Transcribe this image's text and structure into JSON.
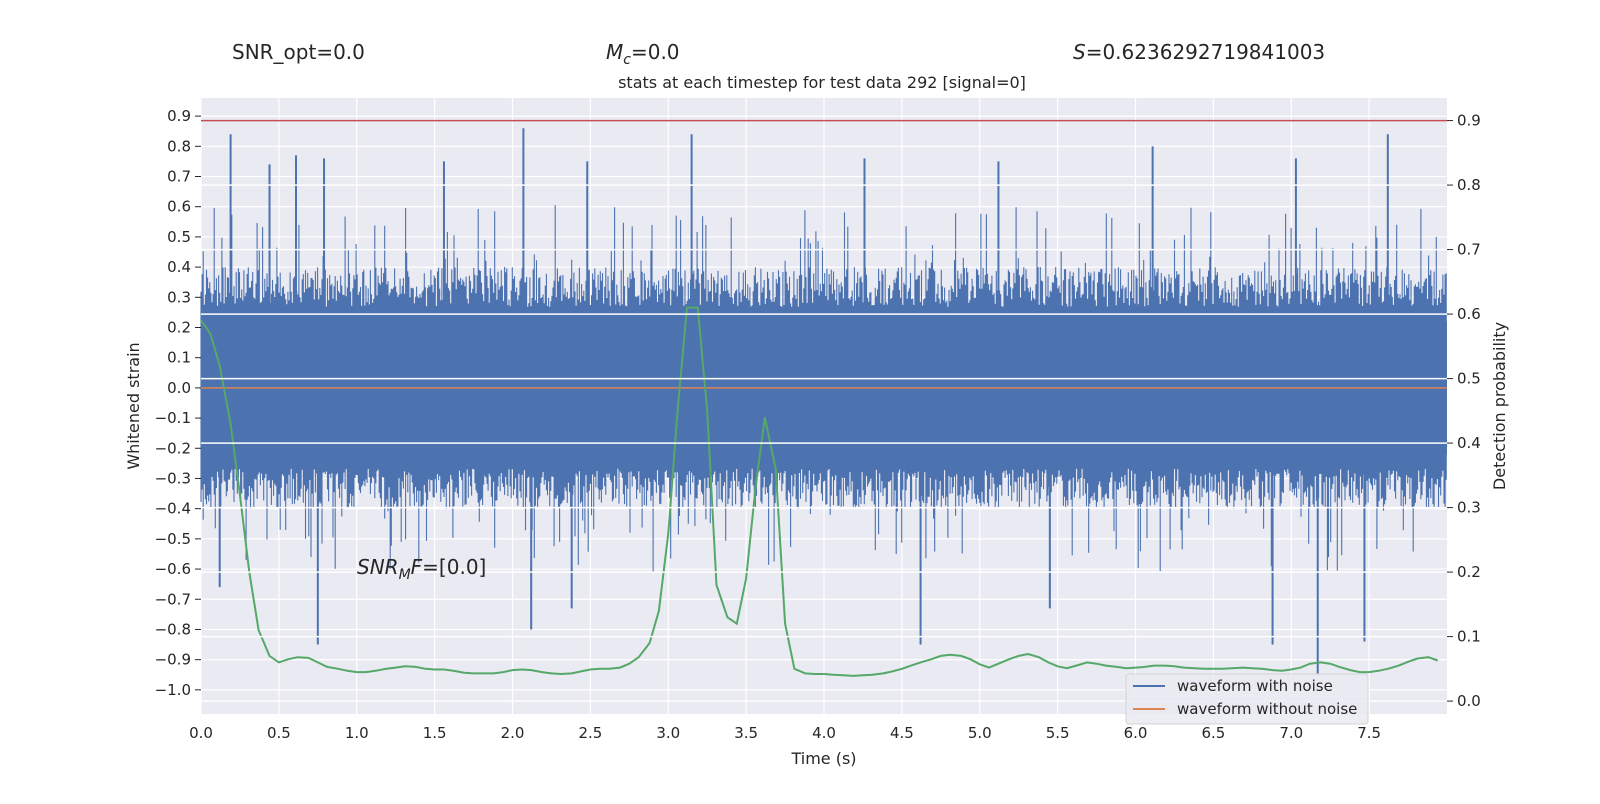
{
  "header": {
    "snr_opt": "SNR_opt=0.0",
    "mc_symbol": "M",
    "mc_sub": "c",
    "mc_value": "=0.0",
    "s_symbol": "S",
    "s_value": "=0.6236292719841003"
  },
  "chart_data": {
    "type": "line",
    "title": "stats at each timestep for test data 292 [signal=0]",
    "xlabel": "Time (s)",
    "ylabel_left": "Whitened strain",
    "ylabel_right": "Detection probability",
    "xlim": [
      0.0,
      8.0
    ],
    "ylim_left": [
      -1.08,
      0.96
    ],
    "ylim_right": [
      -0.02,
      0.935
    ],
    "x_ticks": [
      "0.0",
      "0.5",
      "1.0",
      "1.5",
      "2.0",
      "2.5",
      "3.0",
      "3.5",
      "4.0",
      "4.5",
      "5.0",
      "5.5",
      "6.0",
      "6.5",
      "7.0",
      "7.5"
    ],
    "y_ticks_left": [
      "0.9",
      "0.8",
      "0.7",
      "0.6",
      "0.5",
      "0.4",
      "0.3",
      "0.2",
      "0.1",
      "0.0",
      "-0.1",
      "-0.2",
      "-0.3",
      "-0.4",
      "-0.5",
      "-0.6",
      "-0.7",
      "-0.8",
      "-0.9",
      "-1.0"
    ],
    "y_ticks_right": [
      "0.9",
      "0.8",
      "0.7",
      "0.6",
      "0.5",
      "0.4",
      "0.3",
      "0.2",
      "0.1",
      "0.0"
    ],
    "grid": true,
    "legend_position": "lower-right",
    "annotation": {
      "main": "SNR",
      "sub": "M",
      "tail": "F",
      "value": "=[0.0]"
    },
    "threshold": 0.9,
    "series": [
      {
        "name": "waveform with noise",
        "color": "#4c72b0",
        "axis": "left",
        "envelope": {
          "typical_upper": 0.38,
          "typical_lower": -0.38,
          "dense_core": 0.22
        },
        "spikes": [
          {
            "x": 0.19,
            "y": 0.84
          },
          {
            "x": 0.44,
            "y": 0.74
          },
          {
            "x": 0.61,
            "y": 0.77
          },
          {
            "x": 0.79,
            "y": 0.76
          },
          {
            "x": 1.56,
            "y": 0.75
          },
          {
            "x": 2.07,
            "y": 0.86
          },
          {
            "x": 2.48,
            "y": 0.75
          },
          {
            "x": 3.15,
            "y": 0.84
          },
          {
            "x": 4.26,
            "y": 0.76
          },
          {
            "x": 5.12,
            "y": 0.75
          },
          {
            "x": 6.11,
            "y": 0.8
          },
          {
            "x": 7.03,
            "y": 0.76
          },
          {
            "x": 7.62,
            "y": 0.84
          },
          {
            "x": 0.12,
            "y": -0.66
          },
          {
            "x": 0.75,
            "y": -0.85
          },
          {
            "x": 2.12,
            "y": -0.8
          },
          {
            "x": 2.38,
            "y": -0.73
          },
          {
            "x": 4.62,
            "y": -0.85
          },
          {
            "x": 5.45,
            "y": -0.73
          },
          {
            "x": 6.88,
            "y": -0.85
          },
          {
            "x": 7.17,
            "y": -0.95
          },
          {
            "x": 7.47,
            "y": -0.84
          }
        ]
      },
      {
        "name": "waveform without noise",
        "color": "#dd8452",
        "axis": "left",
        "x": [
          0.0,
          8.0
        ],
        "y": [
          0.0,
          0.0
        ]
      },
      {
        "name": "",
        "color": "#55a868",
        "axis": "right",
        "x": [
          0.0,
          0.06,
          0.12,
          0.19,
          0.25,
          0.31,
          0.37,
          0.44,
          0.5,
          0.56,
          0.62,
          0.69,
          0.75,
          0.81,
          0.88,
          0.94,
          1.0,
          1.06,
          1.12,
          1.19,
          1.25,
          1.31,
          1.38,
          1.44,
          1.5,
          1.56,
          1.62,
          1.69,
          1.75,
          1.81,
          1.88,
          1.94,
          2.0,
          2.06,
          2.12,
          2.19,
          2.25,
          2.31,
          2.38,
          2.44,
          2.5,
          2.56,
          2.62,
          2.69,
          2.75,
          2.81,
          2.88,
          2.94,
          3.0,
          3.06,
          3.12,
          3.19,
          3.25,
          3.31,
          3.38,
          3.44,
          3.5,
          3.56,
          3.62,
          3.69,
          3.75,
          3.81,
          3.88,
          3.94,
          4.0,
          4.06,
          4.12,
          4.19,
          4.25,
          4.31,
          4.38,
          4.44,
          4.5,
          4.56,
          4.62,
          4.69,
          4.75,
          4.81,
          4.88,
          4.94,
          5.0,
          5.06,
          5.12,
          5.19,
          5.25,
          5.31,
          5.38,
          5.44,
          5.5,
          5.56,
          5.62,
          5.69,
          5.75,
          5.81,
          5.88,
          5.94,
          6.0,
          6.06,
          6.12,
          6.19,
          6.25,
          6.31,
          6.38,
          6.44,
          6.5,
          6.56,
          6.62,
          6.69,
          6.75,
          6.81,
          6.88,
          6.94,
          7.0,
          7.06,
          7.12,
          7.19,
          7.25,
          7.31,
          7.38,
          7.44,
          7.5,
          7.56,
          7.62,
          7.69,
          7.75,
          7.81,
          7.88,
          7.94
        ],
        "y": [
          0.59,
          0.57,
          0.52,
          0.43,
          0.32,
          0.2,
          0.11,
          0.07,
          0.06,
          0.065,
          0.068,
          0.067,
          0.06,
          0.053,
          0.05,
          0.047,
          0.045,
          0.045,
          0.047,
          0.05,
          0.052,
          0.054,
          0.053,
          0.05,
          0.049,
          0.049,
          0.047,
          0.044,
          0.043,
          0.043,
          0.043,
          0.045,
          0.048,
          0.049,
          0.048,
          0.045,
          0.043,
          0.042,
          0.043,
          0.046,
          0.049,
          0.05,
          0.05,
          0.052,
          0.058,
          0.068,
          0.09,
          0.14,
          0.26,
          0.45,
          0.61,
          0.61,
          0.45,
          0.18,
          0.13,
          0.12,
          0.19,
          0.33,
          0.44,
          0.36,
          0.12,
          0.05,
          0.043,
          0.042,
          0.042,
          0.041,
          0.04,
          0.039,
          0.04,
          0.041,
          0.043,
          0.046,
          0.05,
          0.055,
          0.06,
          0.065,
          0.07,
          0.072,
          0.07,
          0.065,
          0.057,
          0.052,
          0.058,
          0.065,
          0.07,
          0.073,
          0.068,
          0.06,
          0.054,
          0.051,
          0.055,
          0.06,
          0.058,
          0.055,
          0.053,
          0.051,
          0.052,
          0.053,
          0.055,
          0.055,
          0.054,
          0.052,
          0.051,
          0.05,
          0.05,
          0.05,
          0.051,
          0.052,
          0.051,
          0.05,
          0.048,
          0.047,
          0.049,
          0.052,
          0.058,
          0.06,
          0.058,
          0.053,
          0.048,
          0.045,
          0.045,
          0.047,
          0.05,
          0.055,
          0.061,
          0.066,
          0.068,
          0.063
        ]
      }
    ]
  }
}
